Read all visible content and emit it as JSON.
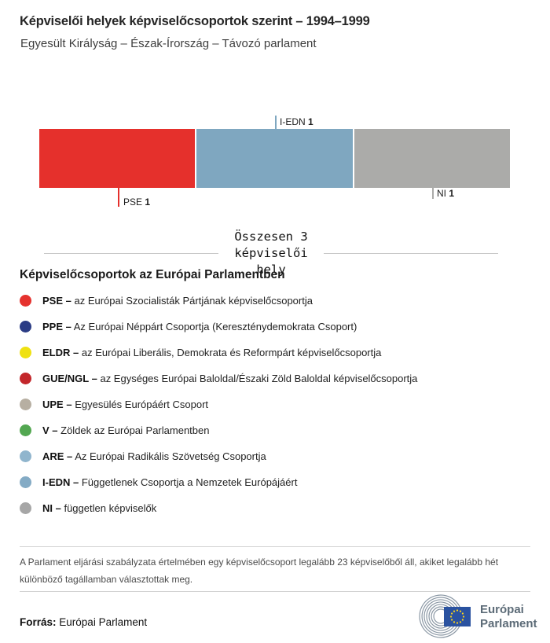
{
  "page": {
    "title": "Képviselői helyek képviselőcsoportok szerint – 1994–1999",
    "subtitle": "Egyesült Királyság – Észak-Írország – Távozó parlament"
  },
  "chart_data": {
    "type": "bar",
    "orientation": "horizontal-stacked",
    "title": "Képviselői helyek képviselőcsoportok szerint – 1994–1999",
    "subtitle": "Egyesült Királyság – Észak-Írország – Távozó parlament",
    "total": 3,
    "total_text": "Összesen 3 képviselői hely",
    "series": [
      {
        "name": "PSE",
        "value": 1,
        "color": "#e5302c",
        "label_position": "below"
      },
      {
        "name": "I-EDN",
        "value": 1,
        "color": "#7fa7c0",
        "label_position": "above"
      },
      {
        "name": "NI",
        "value": 1,
        "color": "#ababa9",
        "label_position": "below"
      }
    ]
  },
  "legend": {
    "heading": "Képviselőcsoportok az Európai Parlamentben",
    "items": [
      {
        "abbr": "PSE –",
        "desc": "az Európai Szocialisták Pártjának képviselőcsoportja",
        "color": "#e5322e"
      },
      {
        "abbr": "PPE –",
        "desc": "Az Európai Néppárt Csoportja (Kereszténydemokrata Csoport)",
        "color": "#2b3c85"
      },
      {
        "abbr": "ELDR –",
        "desc": "az Európai Liberális, Demokrata és Reformpárt képviselőcsoportja",
        "color": "#efe112"
      },
      {
        "abbr": "GUE/NGL –",
        "desc": "az Egységes Európai Baloldal/Északi Zöld Baloldal képviselőcsoportja",
        "color": "#c3272b"
      },
      {
        "abbr": "UPE –",
        "desc": "Egyesülés Európáért Csoport",
        "color": "#b7afa2"
      },
      {
        "abbr": "V –",
        "desc": "Zöldek az Európai Parlamentben",
        "color": "#53a751"
      },
      {
        "abbr": "ARE –",
        "desc": "Az Európai Radikális Szövetség Csoportja",
        "color": "#90b5cd"
      },
      {
        "abbr": "I-EDN –",
        "desc": "Függetlenek Csoportja a Nemzetek Európájáért",
        "color": "#84abc5"
      },
      {
        "abbr": "NI –",
        "desc": "független képviselők",
        "color": "#a6a6a6"
      }
    ]
  },
  "footer": {
    "note": "A Parlament eljárási szabályzata értelmében egy képviselőcsoport legalább 23 képviselőből áll, akiket legalább hét különböző tagállamban választottak meg.",
    "source_label": "Forrás:",
    "source_value": "Európai Parlament",
    "logo": {
      "line1": "Európai",
      "line2": "Parlament",
      "flag_color": "#2a52a0",
      "star_color": "#ffd617"
    }
  }
}
